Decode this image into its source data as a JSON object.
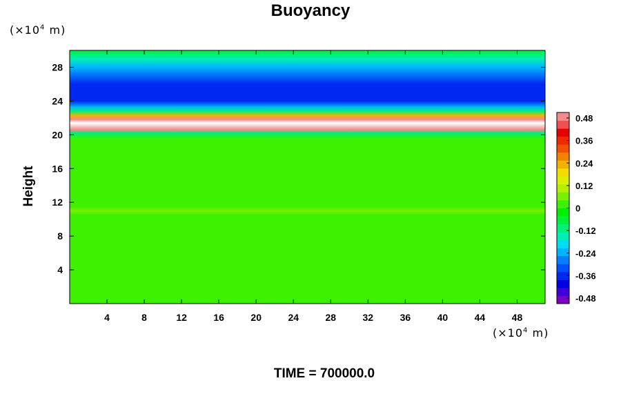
{
  "chart_data": {
    "type": "heatmap",
    "title": "Buoyancy",
    "ylabel": "Height",
    "y_unit_prefix": "(×10",
    "y_unit_exp": "4",
    "y_unit_suffix": " m)",
    "x_unit_prefix": "(×10",
    "x_unit_exp": "4",
    "x_unit_suffix": " m)",
    "footer": "TIME = 700000.0",
    "xlim": [
      0,
      51
    ],
    "ylim": [
      0,
      30
    ],
    "x_ticks": [
      4,
      8,
      12,
      16,
      20,
      24,
      28,
      32,
      36,
      40,
      44,
      48
    ],
    "y_ticks": [
      4,
      8,
      12,
      16,
      20,
      24,
      28
    ],
    "colorbar": {
      "ticks": [
        "0.48",
        "0.36",
        "0.24",
        "0.12",
        "0",
        "-0.12",
        "-0.24",
        "-0.36",
        "-0.48"
      ],
      "min": -0.48,
      "max": 0.48,
      "levels": 24,
      "colors": [
        "#7a00c8",
        "#3c00d8",
        "#0000e0",
        "#0028f0",
        "#0050ff",
        "#0082ff",
        "#00b4ff",
        "#00dcf0",
        "#00f0b4",
        "#00f078",
        "#00f03c",
        "#00f000",
        "#3cf000",
        "#78f000",
        "#b4f000",
        "#dcf000",
        "#f0dc00",
        "#f0b400",
        "#f08200",
        "#f05000",
        "#f02800",
        "#e60000",
        "#f05050",
        "#f08c8c"
      ]
    },
    "vertical_profile": [
      {
        "height": 0,
        "value": 0.0
      },
      {
        "height": 10.5,
        "value": 0.0
      },
      {
        "height": 11.0,
        "value": 0.07
      },
      {
        "height": 11.5,
        "value": 0.02
      },
      {
        "height": 19.5,
        "value": 0.0
      },
      {
        "height": 20.2,
        "value": -0.1
      },
      {
        "height": 20.6,
        "value": 0.44
      },
      {
        "height": 21.4,
        "value": 0.9
      },
      {
        "height": 21.8,
        "value": 0.44
      },
      {
        "height": 22.3,
        "value": 0.2
      },
      {
        "height": 22.8,
        "value": -0.1
      },
      {
        "height": 23.3,
        "value": -0.2
      },
      {
        "height": 24.0,
        "value": -0.33
      },
      {
        "height": 26.0,
        "value": -0.36
      },
      {
        "height": 28.0,
        "value": -0.24
      },
      {
        "height": 29.0,
        "value": -0.14
      },
      {
        "height": 30.0,
        "value": -0.08
      }
    ]
  }
}
